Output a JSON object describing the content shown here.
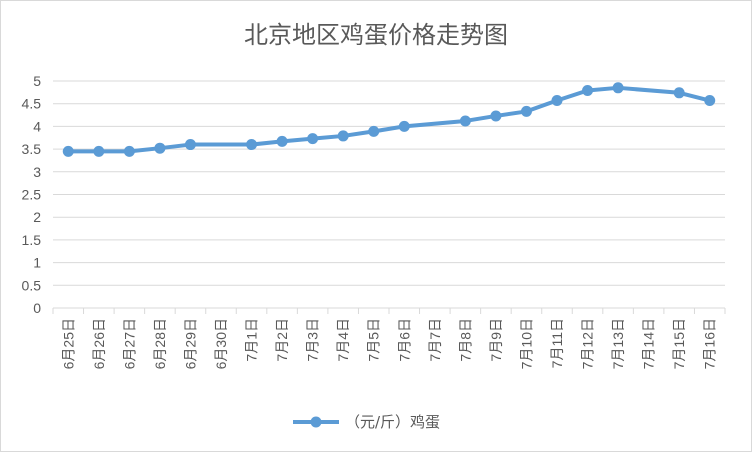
{
  "chart_data": {
    "type": "line",
    "title": "北京地区鸡蛋价格走势图",
    "categories": [
      "6月25日",
      "6月26日",
      "6月27日",
      "6月28日",
      "6月29日",
      "6月30日",
      "7月1日",
      "7月2日",
      "7月3日",
      "7月4日",
      "7月5日",
      "7月6日",
      "7月7日",
      "7月8日",
      "7月9日",
      "7月10日",
      "7月11日",
      "7月12日",
      "7月13日",
      "7月14日",
      "7月15日",
      "7月16日"
    ],
    "series": [
      {
        "name": "（元/斤）鸡蛋",
        "points": [
          {
            "x": "6月25日",
            "y": 3.45
          },
          {
            "x": "6月26日",
            "y": 3.45
          },
          {
            "x": "6月27日",
            "y": 3.45
          },
          {
            "x": "6月28日",
            "y": 3.52
          },
          {
            "x": "6月29日",
            "y": 3.6
          },
          {
            "x": "7月1日",
            "y": 3.6
          },
          {
            "x": "7月2日",
            "y": 3.67
          },
          {
            "x": "7月3日",
            "y": 3.73
          },
          {
            "x": "7月4日",
            "y": 3.79
          },
          {
            "x": "7月5日",
            "y": 3.89
          },
          {
            "x": "7月6日",
            "y": 4.0
          },
          {
            "x": "7月8日",
            "y": 4.12
          },
          {
            "x": "7月9日",
            "y": 4.23
          },
          {
            "x": "7月10日",
            "y": 4.33
          },
          {
            "x": "7月11日",
            "y": 4.57
          },
          {
            "x": "7月12日",
            "y": 4.79
          },
          {
            "x": "7月13日",
            "y": 4.85
          },
          {
            "x": "7月15日",
            "y": 4.74
          },
          {
            "x": "7月16日",
            "y": 4.57
          }
        ]
      }
    ],
    "y_ticks": [
      "0",
      "0.5",
      "1",
      "1.5",
      "2",
      "2.5",
      "3",
      "3.5",
      "4",
      "4.5",
      "5"
    ],
    "ylim": [
      0,
      5
    ],
    "grid": "horizontal",
    "legend_position": "bottom",
    "colors": {
      "series": "#5b9bd5",
      "grid": "#d9d9d9",
      "text": "#595959"
    }
  }
}
